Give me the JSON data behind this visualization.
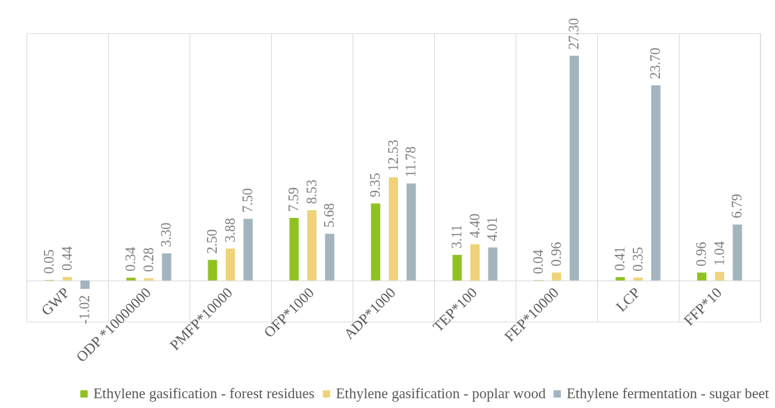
{
  "chart_data": {
    "type": "bar",
    "categories": [
      "GWP",
      "ODP *10000000",
      "PMFP*10000",
      "OFP*1000",
      "ADP*1000",
      "TEP*100",
      "FEP*10000",
      "LCP",
      "FFP*10"
    ],
    "series": [
      {
        "name": "Ethylene gasification - forest residues",
        "color": "#8fc121",
        "values": [
          0.05,
          0.34,
          2.5,
          7.59,
          9.35,
          3.11,
          0.04,
          0.41,
          0.96
        ],
        "value_labels": [
          "0.05",
          "0.34",
          "2.50",
          "7.59",
          "9.35",
          "3.11",
          "0.04",
          "0.41",
          "0.96"
        ]
      },
      {
        "name": "Ethylene gasification - poplar wood",
        "color": "#efd27a",
        "values": [
          0.44,
          0.28,
          3.88,
          8.53,
          12.53,
          4.4,
          0.96,
          0.35,
          1.04
        ],
        "value_labels": [
          "0.44",
          "0.28",
          "3.88",
          "8.53",
          "12.53",
          "4.40",
          "0.96",
          "0.35",
          "1.04"
        ]
      },
      {
        "name": "Ethylene fermentation - sugar beet",
        "color": "#a2b4be",
        "values": [
          -1.02,
          3.3,
          7.5,
          5.68,
          11.78,
          4.01,
          27.3,
          23.7,
          6.79
        ],
        "value_labels": [
          "-1.02",
          "3.30",
          "7.50",
          "5.68",
          "11.78",
          "4.01",
          "27.30",
          "23.70",
          "6.79"
        ]
      }
    ],
    "ylim": [
      -5,
      30
    ],
    "grid": "x",
    "legend": "bottom",
    "tick_labels": "x"
  }
}
